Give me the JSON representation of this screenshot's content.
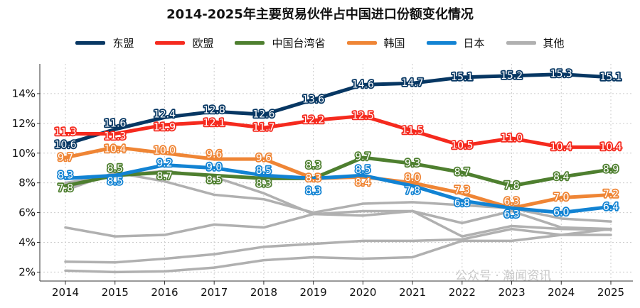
{
  "watermark": "公众号 · 瀚闻资讯",
  "chart_data": {
    "type": "line",
    "title": "2014-2025年主要贸易伙伴占中国进口份额变化情况",
    "xlabel": "",
    "ylabel": "",
    "x": [
      "2014",
      "2015",
      "2016",
      "2017",
      "2018",
      "2019",
      "2020",
      "2021",
      "2022",
      "2023",
      "2024",
      "2025"
    ],
    "ylim": [
      1.4,
      16
    ],
    "yticks": [
      2,
      4,
      6,
      8,
      10,
      12,
      14
    ],
    "ytick_suffix": "%",
    "grid": true,
    "legend_position": "top",
    "series": [
      {
        "name": "东盟",
        "color": "#073763",
        "labels": true,
        "values": [
          10.6,
          11.6,
          12.4,
          12.8,
          12.6,
          13.6,
          14.6,
          14.7,
          15.1,
          15.2,
          15.3,
          15.1
        ]
      },
      {
        "name": "欧盟",
        "color": "#f52a1e",
        "labels": true,
        "values": [
          11.3,
          11.3,
          11.9,
          12.1,
          11.7,
          12.2,
          12.5,
          11.5,
          10.5,
          11.0,
          10.4,
          10.4
        ]
      },
      {
        "name": "中国台湾省",
        "color": "#4e7f2f",
        "labels": true,
        "values": [
          7.8,
          8.5,
          8.7,
          8.5,
          8.3,
          8.3,
          9.7,
          9.3,
          8.7,
          7.8,
          8.4,
          8.9
        ]
      },
      {
        "name": "韩国",
        "color": "#ef8535",
        "labels": true,
        "values": [
          9.7,
          10.4,
          10.0,
          9.6,
          9.6,
          8.3,
          8.4,
          8.0,
          7.3,
          6.3,
          7.0,
          7.2
        ]
      },
      {
        "name": "日本",
        "color": "#1283d3",
        "labels": true,
        "values": [
          8.3,
          8.5,
          9.2,
          9.0,
          8.5,
          8.3,
          8.5,
          7.8,
          6.8,
          6.3,
          6.0,
          6.4
        ]
      },
      {
        "name": "其他",
        "color": "#b0b0b0",
        "labels": false,
        "values": [
          7.5,
          8.7,
          8.1,
          7.2,
          6.9,
          6.0,
          6.6,
          6.7,
          6.5,
          6.3,
          5.6,
          5.4
        ]
      },
      {
        "name": "",
        "color": "#b0b0b0",
        "labels": false,
        "legend": false,
        "values": [
          8.0,
          8.5,
          8.8,
          8.4,
          7.3,
          5.9,
          5.8,
          6.1,
          5.3,
          6.1,
          5.0,
          4.9
        ]
      },
      {
        "name": "",
        "color": "#b0b0b0",
        "labels": false,
        "legend": false,
        "values": [
          5.0,
          4.4,
          4.5,
          5.2,
          5.0,
          5.9,
          6.1,
          6.1,
          4.4,
          5.1,
          4.9,
          4.85
        ]
      },
      {
        "name": "",
        "color": "#b0b0b0",
        "labels": false,
        "legend": false,
        "values": [
          2.7,
          2.65,
          2.9,
          3.2,
          3.7,
          3.9,
          4.1,
          4.1,
          4.2,
          4.9,
          4.5,
          4.5
        ]
      },
      {
        "name": "",
        "color": "#b0b0b0",
        "labels": false,
        "legend": false,
        "values": [
          2.1,
          2.0,
          2.05,
          2.3,
          2.8,
          3.0,
          2.9,
          3.0,
          4.1,
          4.1,
          4.5,
          4.9
        ]
      }
    ]
  }
}
